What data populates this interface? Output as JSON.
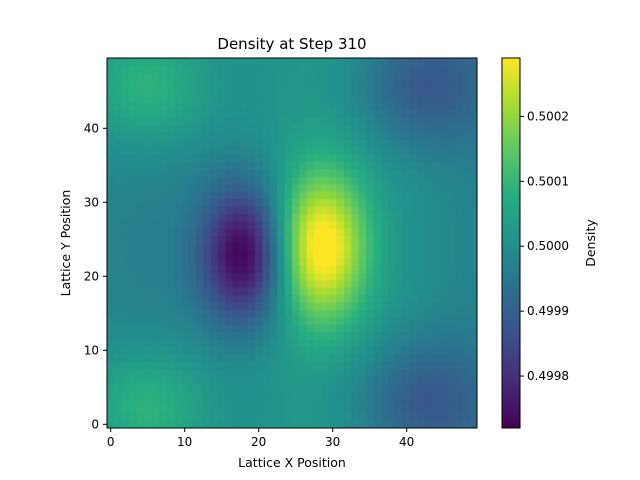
{
  "chart_data": {
    "type": "heatmap",
    "title": "Density at Step 310",
    "xlabel": "Lattice X Position",
    "ylabel": "Lattice Y Position",
    "grid_size": [
      50,
      50
    ],
    "xlim": [
      -0.5,
      49.5
    ],
    "ylim": [
      -0.5,
      49.5
    ],
    "x_ticks": [
      0,
      10,
      20,
      30,
      40
    ],
    "y_ticks": [
      0,
      10,
      20,
      30,
      40
    ],
    "colormap": "viridis",
    "colorbar": {
      "label": "Density",
      "vmin": 0.49972,
      "vmax": 0.50029,
      "ticks": [
        0.4998,
        0.4999,
        0.5,
        0.5001,
        0.5002
      ],
      "tick_labels": [
        "0.4998",
        "0.4999",
        "0.5000",
        "0.5001",
        "0.5002"
      ]
    },
    "baseline": 0.5,
    "features": [
      {
        "kind": "minimum",
        "x": 18,
        "y": 23,
        "value": 0.49972
      },
      {
        "kind": "maximum",
        "x": 28.5,
        "y": 24,
        "value": 0.50029
      },
      {
        "kind": "high",
        "x": 5,
        "y": 46,
        "value": 0.50012
      },
      {
        "kind": "high",
        "x": 5,
        "y": 2,
        "value": 0.50012
      },
      {
        "kind": "low",
        "x": 42,
        "y": 46,
        "value": 0.49988
      },
      {
        "kind": "low",
        "x": 42,
        "y": 3,
        "value": 0.49988
      }
    ]
  }
}
